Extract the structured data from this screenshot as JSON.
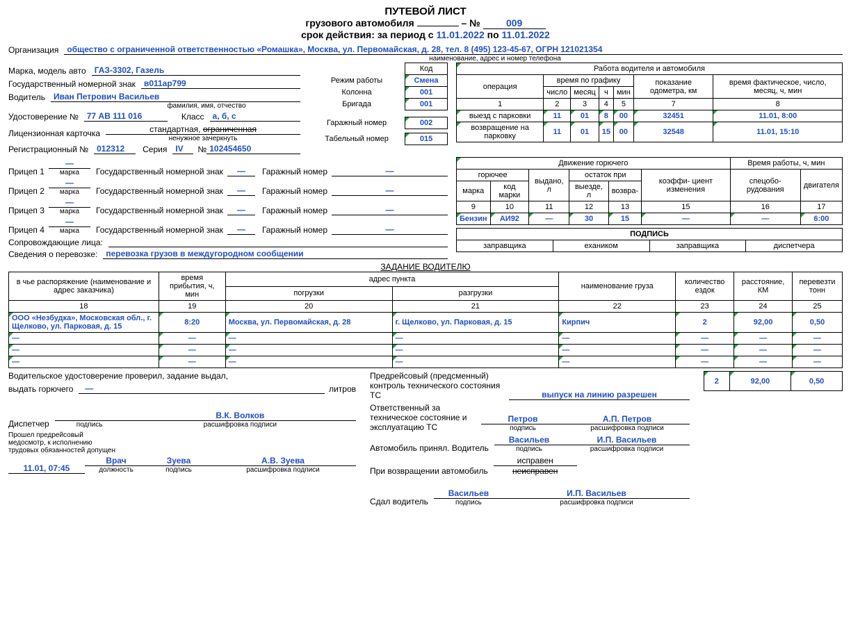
{
  "header": {
    "title": "ПУТЕВОЙ ЛИСТ",
    "subtitle": "грузового автомобиля",
    "series": "",
    "no_label": "№",
    "no": "009",
    "validity_label": "срок действия: за период с",
    "date_from": "11.01.2022",
    "to_label": "по",
    "date_to": "11.01.2022"
  },
  "org": {
    "label": "Организация",
    "value": "общество с ограниченной ответственностью «Ромашка», Москва, ул. Первомайская, д. 28, тел. 8 (495) 123-45-67, ОГРН 121021354",
    "caption": "наименование, адрес и номер телефона"
  },
  "codes": {
    "code_label": "Код",
    "mode_label": "Режим работы",
    "mode": "Смена",
    "column_label": "Колонна",
    "column": "001",
    "brigade_label": "Бригада",
    "brigade": "001",
    "garage_label": "Гаражный номер",
    "garage": "002",
    "tabel_label": "Табельный номер",
    "tabel": "015"
  },
  "vehicle": {
    "brand_label": "Марка, модель авто",
    "brand": "ГАЗ-3302, Газель",
    "plate_label": "Государственный номерной знак",
    "plate": "в011ар799",
    "driver_label": "Водитель",
    "driver": "Иван Петрович Васильев",
    "driver_caption": "фамилия, имя, отчество",
    "license_label": "Удостоверение №",
    "license": "77 АВ 111 016",
    "class_label": "Класс",
    "class": "а, б, с",
    "lic_card_label": "Лицензионная карточка",
    "lic_card_std": "стандартная,",
    "lic_card_lim": "ограниченная",
    "lic_card_caption": "ненужное зачеркнуть",
    "reg_label": "Регистрационный №",
    "reg": "012312",
    "series_label": "Серия",
    "series": "IV",
    "series_no_label": "№",
    "series_no": "102454650"
  },
  "trailers": {
    "t1": "Прицеп 1",
    "t2": "Прицеп 2",
    "t3": "Прицеп 3",
    "t4": "Прицеп 4",
    "mark": "марка",
    "plate_label": "Государственный номерной знак",
    "garage_label": "Гаражный номер",
    "dash": "—"
  },
  "accomp": {
    "label": "Сопровождающие лица:",
    "value": ""
  },
  "transport_info": {
    "label": "Сведения о перевозке:",
    "value": "перевозка грузов в междугородном сообщении"
  },
  "work_table": {
    "title": "Работа водителя и автомобиля",
    "op": "операция",
    "schedule": "время по графику",
    "num": "число",
    "month": "месяц",
    "h": "ч",
    "min": "мин",
    "odometer": "показание одометра, км",
    "actual": "время фактическое, число, месяц, ч, мин",
    "cols": [
      "1",
      "2",
      "3",
      "4",
      "5",
      "7",
      "8"
    ],
    "r1": {
      "op": "выезд с парковки",
      "num": "11",
      "month": "01",
      "h": "8",
      "min": "00",
      "odo": "32451",
      "actual": "11.01, 8:00"
    },
    "r2": {
      "op": "возвращение на парковку",
      "num": "11",
      "month": "01",
      "h": "15",
      "min": "00",
      "odo": "32548",
      "actual": "11.01, 15:10"
    }
  },
  "fuel_table": {
    "title": "Движение горючего",
    "fuel": "горючее",
    "brand": "марка",
    "code": "код марки",
    "issued": "выдано, л",
    "remain": "остаток при",
    "out": "выезде, л",
    "ret": "возвра-",
    "coef": "коэффи- циент изменения",
    "worktime": "Время работы, ч, мин",
    "spec": "спецобо- рудования",
    "engine": "двигателя",
    "cols": [
      "9",
      "10",
      "11",
      "12",
      "13",
      "15",
      "16",
      "17"
    ],
    "r": {
      "brand": "Бензин",
      "code": "АИ92",
      "issued": "—",
      "out": "30",
      "ret": "15",
      "coef": "—",
      "spec": "—",
      "engine": "6:00"
    }
  },
  "sign_row": {
    "title": "ПОДПИСЬ",
    "c1": "заправщика",
    "c2": "ехаником",
    "c3": "заправщика",
    "c4": "диспетчера"
  },
  "task": {
    "title": "ЗАДАНИЕ ВОДИТЕЛЮ",
    "h_whose": "в чье распоряжение (наименование и адрес заказчика)",
    "h_arrival": "время прибытия, ч, мин",
    "h_addr": "адрес пункта",
    "h_load": "погрузки",
    "h_unload": "разгрузки",
    "h_cargo": "наименование груза",
    "h_trips": "количество ездок",
    "h_dist": "расстояние, КМ",
    "h_tons": "перевезти тонн",
    "cols": [
      "18",
      "19",
      "20",
      "21",
      "22",
      "23",
      "24",
      "25"
    ],
    "rows": [
      {
        "whose": "ООО «Незбудка», Московская обл., г. Щелково, ул. Парковая, д. 15",
        "arrival": "8:20",
        "load": "Москва, ул. Первомайская, д. 28",
        "unload": "г. Щелково, ул. Парковая, д. 15",
        "cargo": "Кирпич",
        "trips": "2",
        "dist": "92,00",
        "tons": "0,50"
      },
      {
        "whose": "—",
        "arrival": "—",
        "load": "—",
        "unload": "—",
        "cargo": "—",
        "trips": "—",
        "dist": "—",
        "tons": "—"
      },
      {
        "whose": "—",
        "arrival": "—",
        "load": "—",
        "unload": "—",
        "cargo": "—",
        "trips": "—",
        "dist": "—",
        "tons": "—"
      },
      {
        "whose": "—",
        "arrival": "—",
        "load": "—",
        "unload": "—",
        "cargo": "—",
        "trips": "—",
        "dist": "—",
        "tons": "—"
      }
    ],
    "totals": {
      "trips": "2",
      "dist": "92,00",
      "tons": "0,50"
    }
  },
  "footer": {
    "lic_checked": "Водительское удостоверение проверил, задание выдал,",
    "fuel_issue": "выдать горючего",
    "liters": "литров",
    "dispatcher": "Диспетчер",
    "sign": "подпись",
    "decode": "расшифровка подписи",
    "dispatcher_name": "В.К. Волков",
    "med_text": "Прошел предрейсовый медосмотр, к исполнению трудовых обязанностей допущен",
    "med_time": "11.01, 07:45",
    "doctor_pos": "Врач",
    "doctor_sign": "Зуева",
    "doctor_name": "А.В. Зуева",
    "pos_label": "должность",
    "pretrip": "Предрейсовый (предсменный) контроль технического состояния ТС",
    "release": "выпуск на линию разрешен",
    "resp_label": "Ответственный за техническое состояние и эксплуатацию ТС",
    "resp_sign": "Петров",
    "resp_name": "А.П. Петров",
    "accepted": "Автомобиль принял. Водитель",
    "accepted_sign": "Васильев",
    "accepted_name": "И.П. Васильев",
    "on_return": "При возвращении автомобиль",
    "ok": "исправен",
    "not_ok": "неисправен",
    "handed": "Сдал водитель",
    "handed_sign": "Васильев",
    "handed_name": "И.П. Васильев",
    "dash": "—"
  }
}
